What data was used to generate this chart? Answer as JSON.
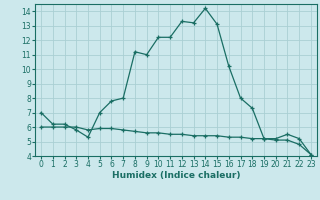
{
  "xlabel": "Humidex (Indice chaleur)",
  "ylabel": "",
  "bg_color": "#cce8ec",
  "grid_color": "#aacfd4",
  "line_color": "#1a6e64",
  "xlim": [
    -0.5,
    23.5
  ],
  "ylim": [
    4,
    14.5
  ],
  "yticks": [
    4,
    5,
    6,
    7,
    8,
    9,
    10,
    11,
    12,
    13,
    14
  ],
  "xticks": [
    0,
    1,
    2,
    3,
    4,
    5,
    6,
    7,
    8,
    9,
    10,
    11,
    12,
    13,
    14,
    15,
    16,
    17,
    18,
    19,
    20,
    21,
    22,
    23
  ],
  "line1_x": [
    0,
    1,
    2,
    3,
    4,
    5,
    6,
    7,
    8,
    9,
    10,
    11,
    12,
    13,
    14,
    15,
    16,
    17,
    18,
    19,
    20,
    21,
    22,
    23
  ],
  "line1_y": [
    7.0,
    6.2,
    6.2,
    5.8,
    5.3,
    7.0,
    7.8,
    8.0,
    11.2,
    11.0,
    12.2,
    12.2,
    13.3,
    13.2,
    14.2,
    13.1,
    10.2,
    8.0,
    7.3,
    5.2,
    5.2,
    5.5,
    5.2,
    4.1
  ],
  "line2_x": [
    0,
    1,
    2,
    3,
    4,
    5,
    6,
    7,
    8,
    9,
    10,
    11,
    12,
    13,
    14,
    15,
    16,
    17,
    18,
    19,
    20,
    21,
    22,
    23
  ],
  "line2_y": [
    6.0,
    6.0,
    6.0,
    6.0,
    5.8,
    5.9,
    5.9,
    5.8,
    5.7,
    5.6,
    5.6,
    5.5,
    5.5,
    5.4,
    5.4,
    5.4,
    5.3,
    5.3,
    5.2,
    5.2,
    5.1,
    5.1,
    4.8,
    4.1
  ],
  "tick_fontsize": 5.5,
  "xlabel_fontsize": 6.5,
  "xlabel_fontweight": "bold"
}
